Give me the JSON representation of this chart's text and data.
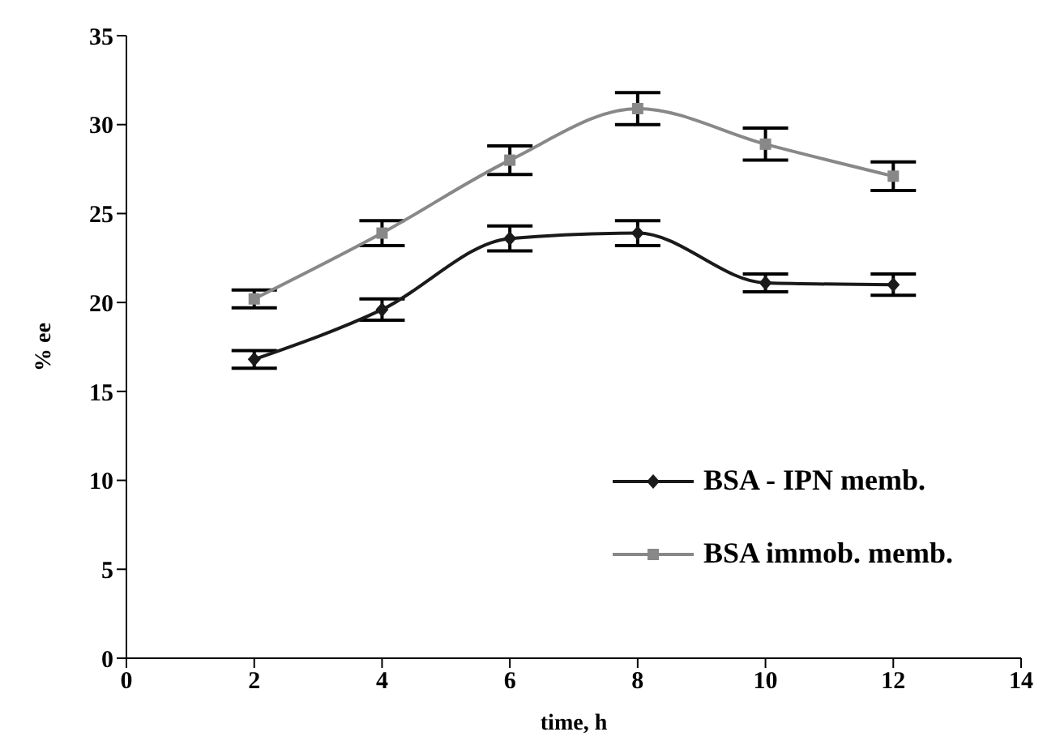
{
  "chart_data": {
    "type": "line",
    "xlabel": "time, h",
    "ylabel": "% ee",
    "x": [
      2,
      4,
      6,
      8,
      10,
      12
    ],
    "series": [
      {
        "name": "BSA - IPN memb.",
        "color": "#1a1a1a",
        "marker": "diamond",
        "values": [
          16.8,
          19.6,
          23.6,
          23.9,
          21.1,
          21.0
        ],
        "errors": [
          0.5,
          0.6,
          0.7,
          0.7,
          0.5,
          0.6
        ]
      },
      {
        "name": "BSA immob. memb.",
        "color": "#888888",
        "marker": "square",
        "values": [
          20.2,
          23.9,
          28.0,
          30.9,
          28.9,
          27.1
        ],
        "errors": [
          0.5,
          0.7,
          0.8,
          0.9,
          0.9,
          0.8
        ]
      }
    ],
    "xlim": [
      0,
      14
    ],
    "xticks": [
      0,
      2,
      4,
      6,
      8,
      10,
      12,
      14
    ],
    "ylim": [
      0,
      35
    ],
    "yticks": [
      0,
      5,
      10,
      15,
      20,
      25,
      30,
      35
    ],
    "grid": false,
    "legend": "right",
    "line_style": "solid"
  }
}
